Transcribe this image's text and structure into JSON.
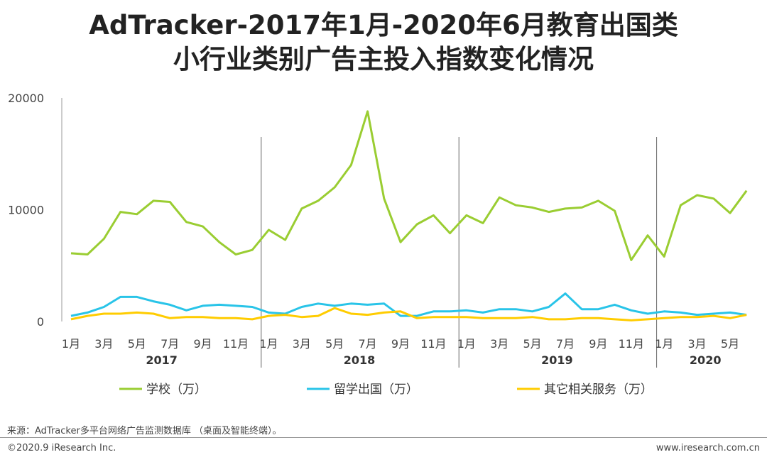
{
  "title_line1": "AdTracker-2017年1月-2020年6月教育出国类",
  "title_line2": "小行业类别广告主投入指数变化情况",
  "source": "来源：AdTracker多平台网络广告监测数据库 （桌面及智能终端）。",
  "copyright": "©2020.9 iResearch Inc.",
  "website": "www.iresearch.com.cn",
  "chart_data": {
    "type": "line",
    "ylim": [
      0,
      20000
    ],
    "yticks": [
      "0",
      "10000",
      "20000"
    ],
    "x": [
      "2017-01",
      "2017-02",
      "2017-03",
      "2017-04",
      "2017-05",
      "2017-06",
      "2017-07",
      "2017-08",
      "2017-09",
      "2017-10",
      "2017-11",
      "2017-12",
      "2018-01",
      "2018-02",
      "2018-03",
      "2018-04",
      "2018-05",
      "2018-06",
      "2018-07",
      "2018-08",
      "2018-09",
      "2018-10",
      "2018-11",
      "2018-12",
      "2019-01",
      "2019-02",
      "2019-03",
      "2019-04",
      "2019-05",
      "2019-06",
      "2019-07",
      "2019-08",
      "2019-09",
      "2019-10",
      "2019-11",
      "2019-12",
      "2020-01",
      "2020-02",
      "2020-03",
      "2020-04",
      "2020-05",
      "2020-06"
    ],
    "month_labels": [
      "1月",
      "",
      "3月",
      "",
      "5月",
      "",
      "7月",
      "",
      "9月",
      "",
      "11月",
      "",
      "1月",
      "",
      "3月",
      "",
      "5月",
      "",
      "7月",
      "",
      "9月",
      "",
      "11月",
      "",
      "1月",
      "",
      "3月",
      "",
      "5月",
      "",
      "7月",
      "",
      "9月",
      "",
      "11月",
      "",
      "1月",
      "",
      "3月",
      "",
      "5月",
      ""
    ],
    "years": [
      "2017",
      "2018",
      "2019",
      "2020"
    ],
    "series": [
      {
        "name": "学校（万）",
        "color": "#9ACD32",
        "values": [
          6100,
          6000,
          7400,
          9800,
          9600,
          10800,
          10700,
          8900,
          8500,
          7100,
          6000,
          6400,
          8200,
          7300,
          10100,
          10800,
          12000,
          14000,
          18800,
          11000,
          7100,
          8700,
          9500,
          7900,
          9500,
          8800,
          11100,
          10400,
          10200,
          9800,
          10100,
          10200,
          10800,
          9900,
          5500,
          7700,
          5800,
          10400,
          11300,
          11000,
          9700,
          11700
        ]
      },
      {
        "name": "留学出国（万）",
        "color": "#29C4E8",
        "values": [
          500,
          800,
          1300,
          2200,
          2200,
          1800,
          1500,
          1000,
          1400,
          1500,
          1400,
          1300,
          800,
          700,
          1300,
          1600,
          1400,
          1600,
          1500,
          1600,
          500,
          500,
          900,
          900,
          1000,
          800,
          1100,
          1100,
          900,
          1300,
          2500,
          1100,
          1100,
          1500,
          1000,
          700,
          900,
          800,
          600,
          700,
          800,
          600
        ]
      },
      {
        "name": "其它相关服务（万）",
        "color": "#FFCC00",
        "values": [
          200,
          500,
          700,
          700,
          800,
          700,
          300,
          400,
          400,
          300,
          300,
          200,
          500,
          600,
          400,
          500,
          1200,
          700,
          600,
          800,
          900,
          300,
          400,
          400,
          400,
          300,
          300,
          300,
          400,
          200,
          200,
          300,
          300,
          200,
          100,
          200,
          300,
          400,
          400,
          500,
          300,
          600
        ]
      }
    ]
  }
}
